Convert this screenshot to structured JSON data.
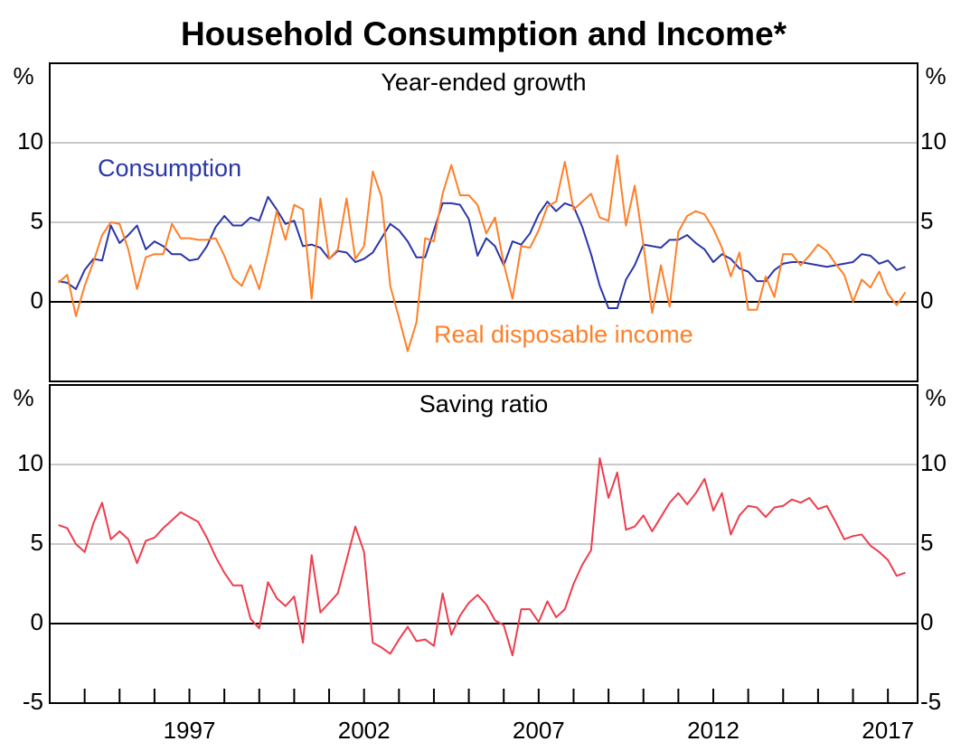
{
  "title": "Household Consumption and Income*",
  "chart_data": [
    {
      "type": "line",
      "title": "Year-ended growth",
      "y_unit": "%",
      "x": [
        1993.25,
        1993.5,
        1993.75,
        1994,
        1994.25,
        1994.5,
        1994.75,
        1995,
        1995.25,
        1995.5,
        1995.75,
        1996,
        1996.25,
        1996.5,
        1996.75,
        1997,
        1997.25,
        1997.5,
        1997.75,
        1998,
        1998.25,
        1998.5,
        1998.75,
        1999,
        1999.25,
        1999.5,
        1999.75,
        2000,
        2000.25,
        2000.5,
        2000.75,
        2001,
        2001.25,
        2001.5,
        2001.75,
        2002,
        2002.25,
        2002.5,
        2002.75,
        2003,
        2003.25,
        2003.5,
        2003.75,
        2004,
        2004.25,
        2004.5,
        2004.75,
        2005,
        2005.25,
        2005.5,
        2005.75,
        2006,
        2006.25,
        2006.5,
        2006.75,
        2007,
        2007.25,
        2007.5,
        2007.75,
        2008,
        2008.25,
        2008.5,
        2008.75,
        2009,
        2009.25,
        2009.5,
        2009.75,
        2010,
        2010.25,
        2010.5,
        2010.75,
        2011,
        2011.25,
        2011.5,
        2011.75,
        2012,
        2012.25,
        2012.5,
        2012.75,
        2013,
        2013.25,
        2013.5,
        2013.75,
        2014,
        2014.25,
        2014.5,
        2014.75,
        2015,
        2015.25,
        2015.5,
        2015.75,
        2016,
        2016.25,
        2016.5,
        2016.75,
        2017,
        2017.25,
        2017.5
      ],
      "series": [
        {
          "name": "Consumption",
          "color": "#2a36a8",
          "values": [
            1.3,
            1.2,
            0.8,
            2.0,
            2.7,
            2.6,
            4.8,
            3.7,
            4.2,
            4.8,
            3.3,
            3.8,
            3.5,
            3.0,
            3.0,
            2.6,
            2.7,
            3.5,
            4.7,
            5.4,
            4.8,
            4.8,
            5.3,
            5.1,
            6.6,
            5.8,
            4.9,
            5.1,
            3.5,
            3.6,
            3.4,
            2.7,
            3.2,
            3.1,
            2.5,
            2.7,
            3.1,
            4.0,
            4.9,
            4.5,
            3.8,
            2.8,
            2.8,
            4.5,
            6.2,
            6.2,
            6.1,
            5.2,
            2.9,
            4.0,
            3.5,
            2.3,
            3.8,
            3.6,
            4.3,
            5.5,
            6.3,
            5.7,
            6.2,
            6.0,
            4.7,
            3.0,
            1.0,
            -0.4,
            -0.4,
            1.4,
            2.3,
            3.6,
            3.5,
            3.4,
            3.9,
            3.9,
            4.2,
            3.7,
            3.3,
            2.5,
            3.0,
            2.7,
            2.1,
            1.9,
            1.3,
            1.3,
            2.0,
            2.4,
            2.5,
            2.5,
            2.4,
            2.3,
            2.2,
            2.3,
            2.4,
            2.5,
            3.0,
            2.9,
            2.4,
            2.6,
            2.0,
            2.2
          ]
        },
        {
          "name": "Real disposable income",
          "color": "#ff7f27",
          "values": [
            1.2,
            1.7,
            -0.9,
            1.0,
            2.5,
            4.2,
            5.0,
            4.9,
            3.3,
            0.8,
            2.8,
            3.0,
            3.0,
            4.9,
            4.0,
            4.0,
            3.9,
            3.9,
            4.0,
            2.9,
            1.5,
            1.0,
            2.3,
            0.8,
            3.1,
            5.7,
            3.9,
            6.1,
            5.8,
            0.2,
            6.5,
            2.7,
            3.3,
            6.5,
            2.7,
            3.5,
            8.2,
            6.6,
            1.0,
            -1.0,
            -3.1,
            -1.3,
            4.0,
            3.8,
            6.8,
            8.6,
            6.7,
            6.7,
            6.1,
            4.3,
            5.3,
            2.4,
            0.2,
            3.5,
            3.4,
            4.5,
            6.0,
            6.3,
            8.8,
            5.8,
            6.3,
            6.8,
            5.3,
            5.1,
            9.2,
            4.8,
            7.3,
            3.6,
            -0.7,
            2.3,
            -0.3,
            4.4,
            5.4,
            5.7,
            5.5,
            4.6,
            3.4,
            1.6,
            3.1,
            -0.5,
            -0.5,
            1.6,
            0.3,
            3.0,
            3.0,
            2.3,
            2.9,
            3.6,
            3.2,
            2.4,
            1.7,
            0.0,
            1.4,
            0.9,
            1.9,
            0.5,
            -0.2,
            0.6
          ]
        }
      ],
      "xlim": [
        1993,
        2017.85
      ],
      "ylim": [
        -5,
        15
      ],
      "yticks": [
        0,
        5,
        10
      ],
      "grid": true
    },
    {
      "type": "line",
      "title": "Saving ratio",
      "y_unit": "%",
      "x": [
        1993.25,
        1993.5,
        1993.75,
        1994,
        1994.25,
        1994.5,
        1994.75,
        1995,
        1995.25,
        1995.5,
        1995.75,
        1996,
        1996.25,
        1996.5,
        1996.75,
        1997,
        1997.25,
        1997.5,
        1997.75,
        1998,
        1998.25,
        1998.5,
        1998.75,
        1999,
        1999.25,
        1999.5,
        1999.75,
        2000,
        2000.25,
        2000.5,
        2000.75,
        2001,
        2001.25,
        2001.5,
        2001.75,
        2002,
        2002.25,
        2002.5,
        2002.75,
        2003,
        2003.25,
        2003.5,
        2003.75,
        2004,
        2004.25,
        2004.5,
        2004.75,
        2005,
        2005.25,
        2005.5,
        2005.75,
        2006,
        2006.25,
        2006.5,
        2006.75,
        2007,
        2007.25,
        2007.5,
        2007.75,
        2008,
        2008.25,
        2008.5,
        2008.75,
        2009,
        2009.25,
        2009.5,
        2009.75,
        2010,
        2010.25,
        2010.5,
        2010.75,
        2011,
        2011.25,
        2011.5,
        2011.75,
        2012,
        2012.25,
        2012.5,
        2012.75,
        2013,
        2013.25,
        2013.5,
        2013.75,
        2014,
        2014.25,
        2014.5,
        2014.75,
        2015,
        2015.25,
        2015.5,
        2015.75,
        2016,
        2016.25,
        2016.5,
        2016.75,
        2017,
        2017.25,
        2017.5
      ],
      "series": [
        {
          "name": "Saving ratio",
          "color": "#ee3d4d",
          "values": [
            6.2,
            6.0,
            5.0,
            4.5,
            6.3,
            7.6,
            5.3,
            5.8,
            5.3,
            3.8,
            5.2,
            5.4,
            6.0,
            6.5,
            7.0,
            6.7,
            6.4,
            5.4,
            4.2,
            3.2,
            2.4,
            2.4,
            0.3,
            -0.3,
            2.6,
            1.6,
            1.1,
            1.7,
            -1.2,
            4.3,
            0.7,
            1.3,
            1.9,
            4.0,
            6.1,
            4.5,
            -1.2,
            -1.5,
            -1.9,
            -1.0,
            -0.2,
            -1.1,
            -1.0,
            -1.4,
            1.9,
            -0.7,
            0.5,
            1.3,
            1.8,
            1.2,
            0.2,
            -0.1,
            -2.0,
            0.9,
            0.9,
            0.1,
            1.4,
            0.4,
            0.9,
            2.5,
            3.7,
            4.6,
            10.4,
            7.9,
            9.5,
            5.9,
            6.1,
            6.8,
            5.8,
            6.7,
            7.6,
            8.2,
            7.5,
            8.2,
            9.1,
            7.1,
            8.2,
            5.6,
            6.8,
            7.4,
            7.3,
            6.7,
            7.3,
            7.4,
            7.8,
            7.6,
            7.9,
            7.2,
            7.4,
            6.4,
            5.3,
            5.5,
            5.6,
            4.9,
            4.5,
            4.0,
            3.0,
            3.2
          ]
        }
      ],
      "xlim": [
        1993,
        2017.85
      ],
      "ylim": [
        -5,
        15
      ],
      "yticks": [
        -5,
        0,
        5,
        10
      ],
      "grid": true,
      "xticks": [
        1997,
        2002,
        2007,
        2012,
        2017
      ],
      "xminor_ticks": [
        1994,
        1995,
        1996,
        1998,
        1999,
        2000,
        2001,
        2003,
        2004,
        2005,
        2006,
        2008,
        2009,
        2010,
        2011,
        2013,
        2014,
        2015,
        2016
      ]
    }
  ]
}
